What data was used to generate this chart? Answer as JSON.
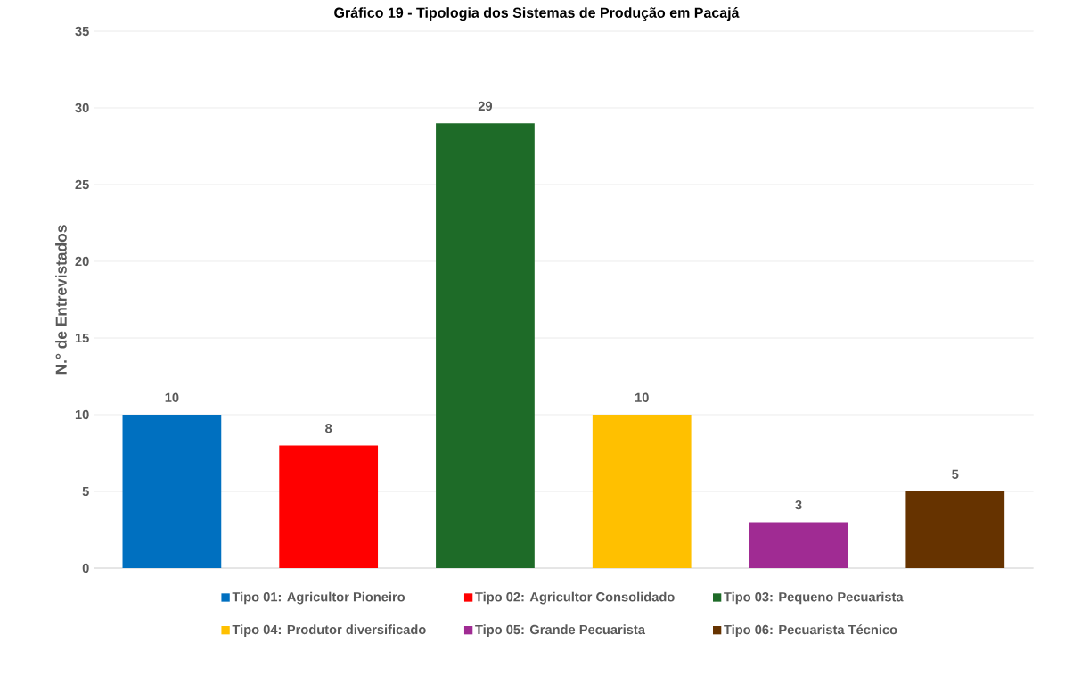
{
  "chart_data": {
    "type": "bar",
    "title": "Gráfico 19 - Tipologia dos Sistemas de Produção em Pacajá",
    "ylabel": "N.° de Entrevistados",
    "categories": [
      null,
      null,
      null,
      null,
      null,
      null
    ],
    "series": [
      {
        "name": "Tipo 01: Agricultor Pioneiro",
        "color": "#0070c0",
        "values": [
          10,
          null,
          null,
          null,
          null,
          null
        ]
      },
      {
        "name": "Tipo 02: Agricultor Consolidado",
        "color": "#ff0000",
        "values": [
          null,
          8,
          null,
          null,
          null,
          null
        ]
      },
      {
        "name": "Tipo 03: Pequeno Pecuarista",
        "color": "#1e6b28",
        "values": [
          null,
          null,
          29,
          null,
          null,
          null
        ]
      },
      {
        "name": "Tipo 04: Produtor diversificado",
        "color": "#ffc000",
        "values": [
          null,
          null,
          null,
          10,
          null,
          null
        ]
      },
      {
        "name": "Tipo 05: Grande Pecuarista",
        "color": "#a02b93",
        "values": [
          null,
          null,
          null,
          null,
          3,
          null
        ]
      },
      {
        "name": "Tipo 06: Pecuarista Técnico",
        "color": "#663300",
        "values": [
          null,
          null,
          null,
          null,
          null,
          5
        ]
      }
    ],
    "ylim": [
      0,
      35
    ],
    "yticks": [
      0,
      5,
      10,
      15,
      20,
      25,
      30,
      35
    ],
    "grid": "y",
    "legend": "bottom",
    "data_labels": true,
    "tick_labels": "y"
  }
}
